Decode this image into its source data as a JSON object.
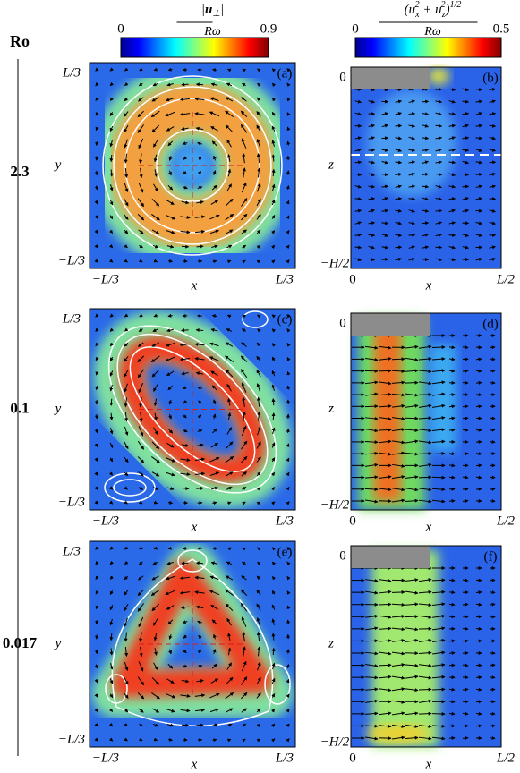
{
  "row_header": "Ro",
  "colorbars": [
    {
      "numerator_parts": [
        "|",
        "u",
        "⊥",
        "|"
      ],
      "denominator": "Rω",
      "min": 0,
      "max": 0.9
    },
    {
      "numerator_parts": [
        "(u",
        "x",
        "2",
        " + u",
        "z",
        "2",
        ")",
        "1/2"
      ],
      "denominator": "Rω",
      "min": 0,
      "max": 0.5
    }
  ],
  "rows": [
    {
      "ro": "2.3",
      "left": {
        "tag": "(a)",
        "y_top": "L/3",
        "y_bottom": "−L/3",
        "x_left": "−L/3",
        "x_right": "L/3",
        "xlabel": "x",
        "ylabel": "y"
      },
      "right": {
        "tag": "(b)",
        "z_top": "0",
        "z_bottom": "−H/2",
        "x_left": "0",
        "x_right": "L/2",
        "xlabel": "x",
        "zlabel": "z"
      }
    },
    {
      "ro": "0.1",
      "left": {
        "tag": "(c)",
        "y_top": "L/3",
        "y_bottom": "−L/3",
        "x_left": "−L/3",
        "x_right": "L/3",
        "xlabel": "x",
        "ylabel": "y"
      },
      "right": {
        "tag": "(d)",
        "z_top": "0",
        "z_bottom": "−H/2",
        "x_left": "0",
        "x_right": "L/2",
        "xlabel": "x",
        "zlabel": "z"
      }
    },
    {
      "ro": "0.017",
      "left": {
        "tag": "(e)",
        "y_top": "L/3",
        "y_bottom": "−L/3",
        "x_left": "−L/3",
        "x_right": "L/3",
        "xlabel": "x",
        "ylabel": "y"
      },
      "right": {
        "tag": "(f)",
        "z_top": "0",
        "z_bottom": "−H/2",
        "x_left": "0",
        "x_right": "L/2",
        "xlabel": "x",
        "zlabel": "z"
      }
    }
  ]
}
